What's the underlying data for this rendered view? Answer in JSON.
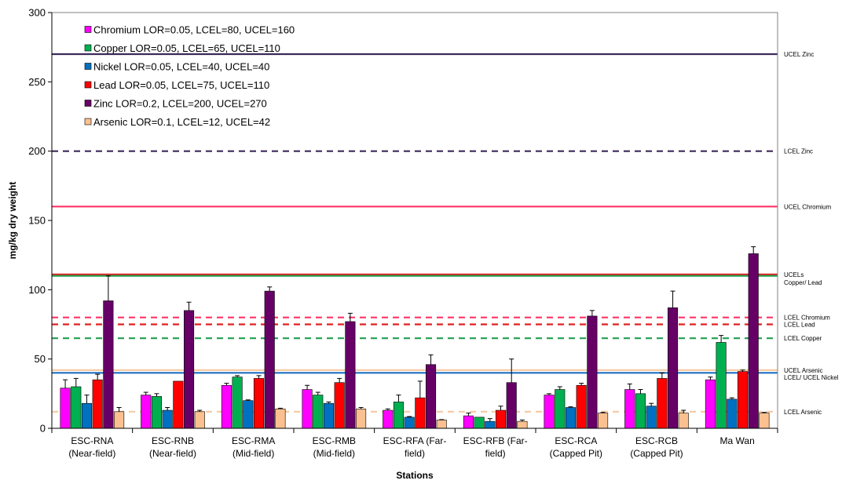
{
  "chart_data": {
    "type": "bar",
    "xlabel": "Stations",
    "ylabel": "mg/kg dry weight",
    "ylim": [
      0,
      300
    ],
    "yticks": [
      0,
      50,
      100,
      150,
      200,
      250,
      300
    ],
    "grid": false,
    "legend_position": "top-left",
    "categories": [
      [
        "ESC-RNA",
        "(Near-field)"
      ],
      [
        "ESC-RNB",
        "(Near-field)"
      ],
      [
        "ESC-RMA",
        "(Mid-field)"
      ],
      [
        "ESC-RMB",
        "(Mid-field)"
      ],
      [
        "ESC-RFA (Far-",
        "field)"
      ],
      [
        "ESC-RFB (Far-",
        "field)"
      ],
      [
        "ESC-RCA",
        "(Capped Pit)"
      ],
      [
        "ESC-RCB",
        "(Capped Pit)"
      ],
      [
        "Ma Wan"
      ]
    ],
    "series": [
      {
        "name": "Chromium LOR=0.05, LCEL=80, UCEL=160",
        "color": "#ff00ff",
        "values": [
          29,
          24,
          31,
          28,
          13,
          9,
          24,
          28,
          35
        ],
        "errors": [
          6,
          2,
          1.5,
          3,
          1,
          2,
          1,
          4,
          2
        ]
      },
      {
        "name": "Copper LOR=0.05, LCEL=65, UCEL=110",
        "color": "#00b050",
        "values": [
          30,
          23,
          37,
          24,
          19,
          8,
          28,
          25,
          62
        ],
        "errors": [
          6,
          2,
          1,
          2,
          5,
          0,
          2,
          3,
          5
        ]
      },
      {
        "name": "Nickel LOR=0.05, LCEL=40, UCEL=40",
        "color": "#0070c0",
        "values": [
          18,
          13,
          20,
          18,
          8,
          5,
          15,
          16,
          21
        ],
        "errors": [
          6,
          2,
          0.5,
          1,
          0.5,
          2,
          0.5,
          2,
          1
        ]
      },
      {
        "name": "Lead LOR=0.05, LCEL=75, UCEL=110",
        "color": "#ff0000",
        "values": [
          35,
          34,
          36,
          33,
          22,
          13,
          31,
          36,
          41
        ],
        "errors": [
          4,
          0,
          2,
          3,
          12,
          3,
          1.5,
          4,
          1
        ]
      },
      {
        "name": "Zinc LOR=0.2, LCEL=200, UCEL=270",
        "color": "#660066",
        "values": [
          92,
          85,
          99,
          77,
          46,
          33,
          81,
          87,
          126
        ],
        "errors": [
          18,
          6,
          3,
          6,
          7,
          17,
          4,
          12,
          5
        ]
      },
      {
        "name": "Arsenic LOR=0.1, LCEL=12, UCEL=42",
        "color": "#fac090",
        "values": [
          12,
          12,
          14,
          14,
          6,
          5,
          11,
          11,
          11
        ],
        "errors": [
          3,
          1,
          0.5,
          1,
          0.3,
          1,
          0.5,
          2,
          0.5
        ]
      }
    ],
    "reference_lines": [
      {
        "value": 270,
        "style": "solid",
        "color": "#3b2a5a",
        "label": [
          "UCEL Zinc"
        ]
      },
      {
        "value": 200,
        "style": "dashed",
        "color": "#3b2a5a",
        "label": [
          "LCEL Zinc"
        ]
      },
      {
        "value": 160,
        "style": "solid",
        "color": "#ff3366",
        "label": [
          "UCEL Chromium"
        ]
      },
      {
        "value": 111,
        "style": "solid",
        "color": "#e02020",
        "label": [
          "UCELs",
          "Copper/ Lead"
        ]
      },
      {
        "value": 110,
        "style": "solid",
        "color": "#20a050",
        "label": []
      },
      {
        "value": 80,
        "style": "dashed",
        "color": "#ff3366",
        "label": [
          "LCEL Chromium"
        ]
      },
      {
        "value": 75,
        "style": "dashed",
        "color": "#e02020",
        "label": [
          "LCEL Lead"
        ]
      },
      {
        "value": 65,
        "style": "dashed",
        "color": "#20a050",
        "label": [
          "LCEL Copper"
        ]
      },
      {
        "value": 42,
        "style": "solid",
        "color": "#f5c8a0",
        "label": [
          "UCEL Arsenic"
        ]
      },
      {
        "value": 40,
        "style": "solid",
        "color": "#1f6fc0",
        "label": [
          "LCEL/ UCEL Nickel"
        ]
      },
      {
        "value": 12,
        "style": "dashed",
        "color": "#f5c8a0",
        "label": [
          "LCEL Arsenic"
        ]
      }
    ]
  }
}
